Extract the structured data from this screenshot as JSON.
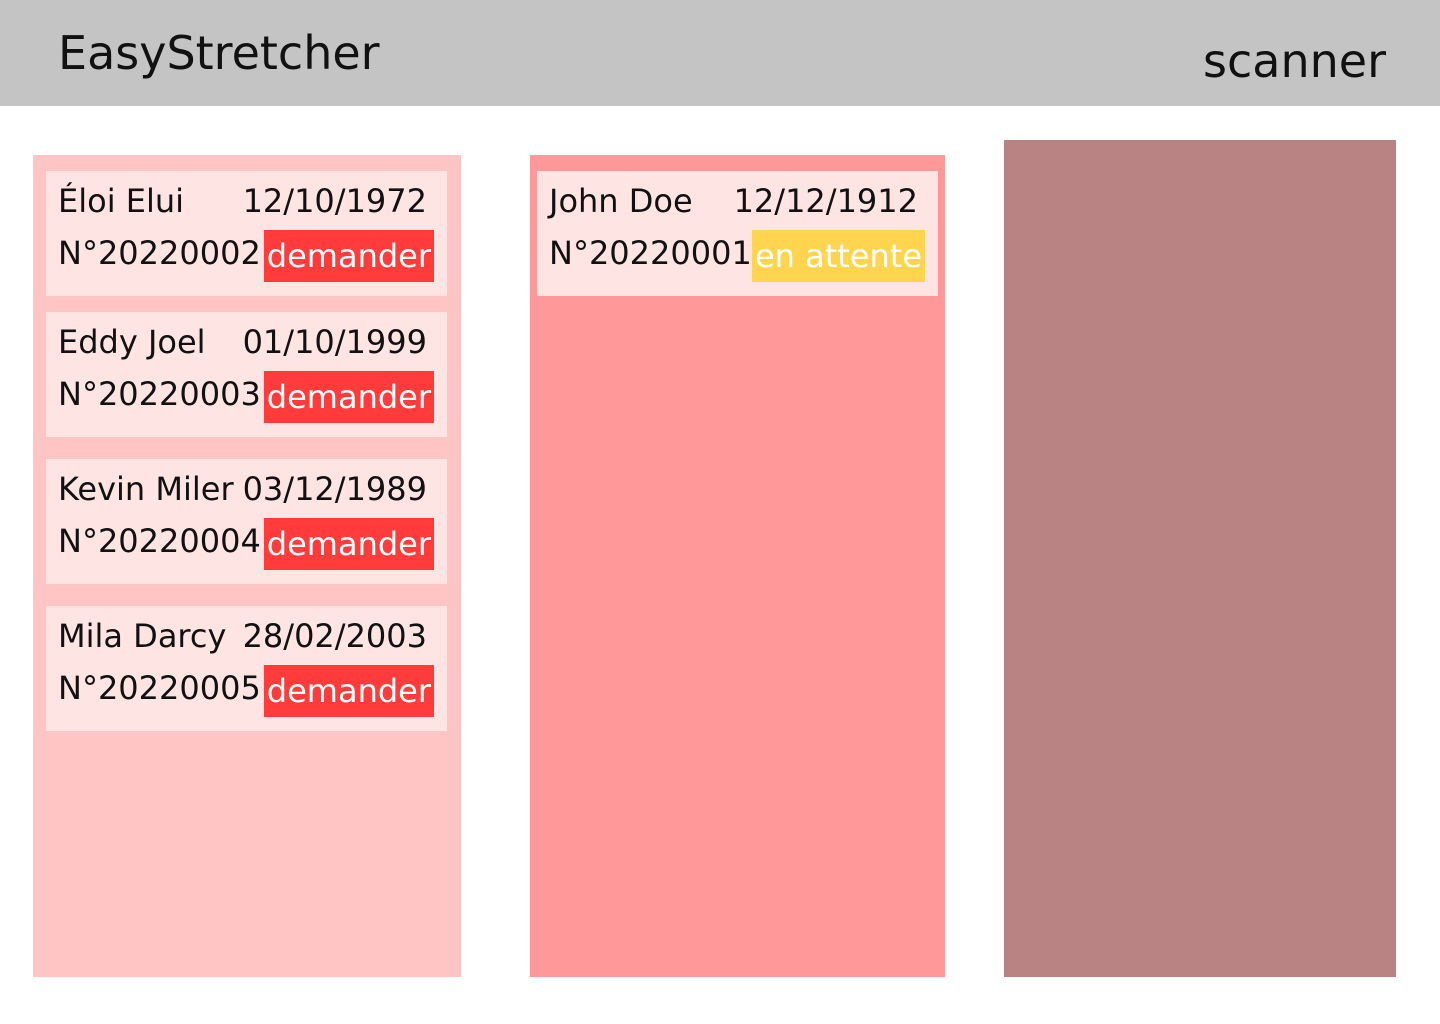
{
  "header": {
    "title": "EasyStretcher",
    "scanner_label": "scanner"
  },
  "columns": {
    "requests": {
      "color": "#ffc4c4",
      "cards": [
        {
          "name": "Éloi Elui",
          "date": "12/10/1972",
          "number": "N°20220002",
          "action": "demander",
          "action_color": "#ff3b3b"
        },
        {
          "name": "Eddy Joel",
          "date": "01/10/1999",
          "number": "N°20220003",
          "action": "demander",
          "action_color": "#ff3b3b"
        },
        {
          "name": "Kevin Miler",
          "date": "03/12/1989",
          "number": "N°20220004",
          "action": "demander",
          "action_color": "#ff3b3b"
        },
        {
          "name": "Mila Darcy",
          "date": "28/02/2003",
          "number": "N°20220005",
          "action": "demander",
          "action_color": "#ff3b3b"
        }
      ]
    },
    "waiting": {
      "color": "#ff9999",
      "cards": [
        {
          "name": "John Doe",
          "date": "12/12/1912",
          "number": "N°20220001",
          "action": "en attente",
          "action_color": "#ffd54f"
        }
      ]
    },
    "third": {
      "color": "#b98383"
    }
  }
}
